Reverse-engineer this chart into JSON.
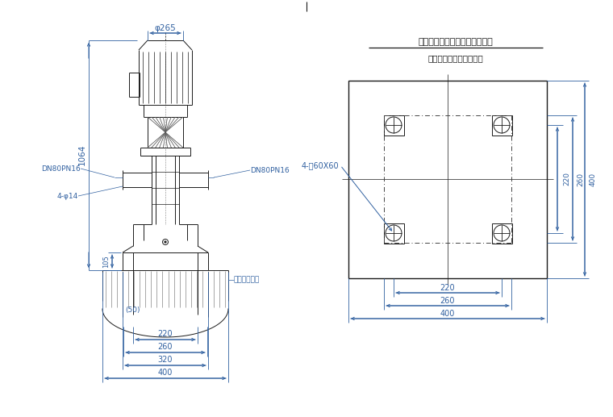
{
  "bg_color": "#ffffff",
  "line_color": "#1a1a1a",
  "dim_color": "#3060A0",
  "title1": "泵座孔位及混凝土基座地脚孔位",
  "title2": "双点划线表示泵底座位置",
  "left_labels": {
    "phi265": "φ265",
    "1064": "1064",
    "DN80PN16_left": "DN80PN16",
    "DN80PN16_right": "DN80PN16",
    "4phi14": "4-φ14",
    "105": "105",
    "220": "220",
    "260": "260",
    "320": "320",
    "400_bottom": "400",
    "50": "(50)",
    "concrete": "混凝土基础，"
  },
  "right_labels": {
    "4_hole": "4-口60X60",
    "220_h": "220",
    "260_h": "260",
    "400_h": "400",
    "220_v": "220",
    "260_v": "260",
    "400_v": "400"
  }
}
